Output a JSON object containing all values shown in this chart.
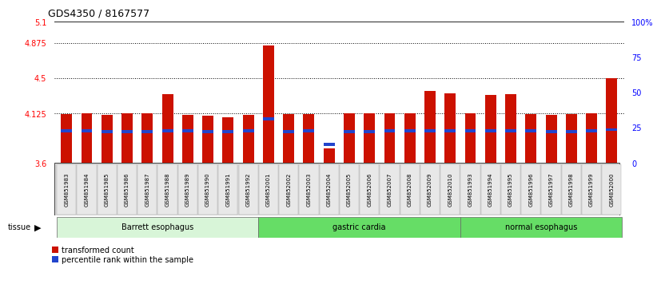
{
  "title": "GDS4350 / 8167577",
  "samples": [
    "GSM851983",
    "GSM851984",
    "GSM851985",
    "GSM851986",
    "GSM851987",
    "GSM851988",
    "GSM851989",
    "GSM851990",
    "GSM851991",
    "GSM851992",
    "GSM852001",
    "GSM852002",
    "GSM852003",
    "GSM852004",
    "GSM852005",
    "GSM852006",
    "GSM852007",
    "GSM852008",
    "GSM852009",
    "GSM852010",
    "GSM851993",
    "GSM851994",
    "GSM851995",
    "GSM851996",
    "GSM851997",
    "GSM851998",
    "GSM851999",
    "GSM852000"
  ],
  "red_values": [
    4.12,
    4.125,
    4.115,
    4.128,
    4.13,
    4.335,
    4.11,
    4.1,
    4.083,
    4.11,
    4.85,
    4.12,
    4.12,
    3.755,
    4.128,
    4.13,
    4.13,
    4.128,
    4.37,
    4.34,
    4.128,
    4.325,
    4.33,
    4.12,
    4.115,
    4.12,
    4.126,
    4.5
  ],
  "blue_values": [
    3.94,
    3.94,
    3.935,
    3.935,
    3.935,
    3.94,
    3.94,
    3.935,
    3.935,
    3.94,
    4.07,
    3.935,
    3.94,
    3.8,
    3.935,
    3.935,
    3.94,
    3.94,
    3.94,
    3.94,
    3.94,
    3.94,
    3.94,
    3.94,
    3.935,
    3.935,
    3.94,
    3.955
  ],
  "ylim_left": [
    3.6,
    5.1
  ],
  "yticks_left": [
    3.6,
    4.125,
    4.5,
    4.875,
    5.1
  ],
  "ytick_labels_left": [
    "3.6",
    "4.125",
    "4.5",
    "4.875",
    "5.1"
  ],
  "ytick_labels_right": [
    "0",
    "25",
    "50",
    "75",
    "100%"
  ],
  "yticks_right": [
    0,
    25,
    50,
    75,
    100
  ],
  "hlines": [
    4.125,
    4.5,
    4.875
  ],
  "bar_color": "#cc1100",
  "blue_color": "#2244cc",
  "legend_red": "transformed count",
  "legend_blue": "percentile rank within the sample",
  "group_defs": [
    {
      "label": "Barrett esophagus",
      "start": 0,
      "end": 10,
      "color": "#d8f5d8"
    },
    {
      "label": "gastric cardia",
      "start": 10,
      "end": 20,
      "color": "#66dd66"
    },
    {
      "label": "normal esophagus",
      "start": 20,
      "end": 28,
      "color": "#66dd66"
    }
  ]
}
